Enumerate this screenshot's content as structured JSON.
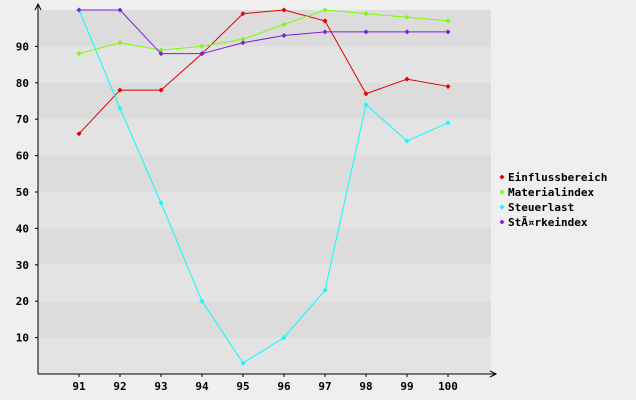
{
  "chart_data": {
    "type": "line",
    "title": "",
    "xlabel": "",
    "ylabel": "",
    "categories": [
      "91",
      "92",
      "93",
      "94",
      "95",
      "96",
      "97",
      "98",
      "99",
      "100"
    ],
    "y_ticks": [
      10,
      20,
      30,
      40,
      50,
      60,
      70,
      80,
      90
    ],
    "ylim": [
      0,
      100
    ],
    "grid": true,
    "legend_position": "right",
    "series": [
      {
        "name": "Einflussbereich",
        "color": "#e00000",
        "values": [
          66,
          78,
          78,
          88,
          99,
          100,
          97,
          77,
          81,
          79
        ]
      },
      {
        "name": "Materialindex",
        "color": "#7cfc00",
        "values": [
          88,
          91,
          89,
          90,
          92,
          96,
          100,
          99,
          98,
          97
        ]
      },
      {
        "name": "Steuerlast",
        "color": "#00ffff",
        "values": [
          100,
          73,
          47,
          20,
          3,
          10,
          23,
          74,
          64,
          69
        ]
      },
      {
        "name": "StÃ¤rkeindex",
        "color": "#7b20d8",
        "values": [
          100,
          100,
          88,
          88,
          91,
          93,
          94,
          94,
          94,
          94
        ]
      }
    ]
  }
}
